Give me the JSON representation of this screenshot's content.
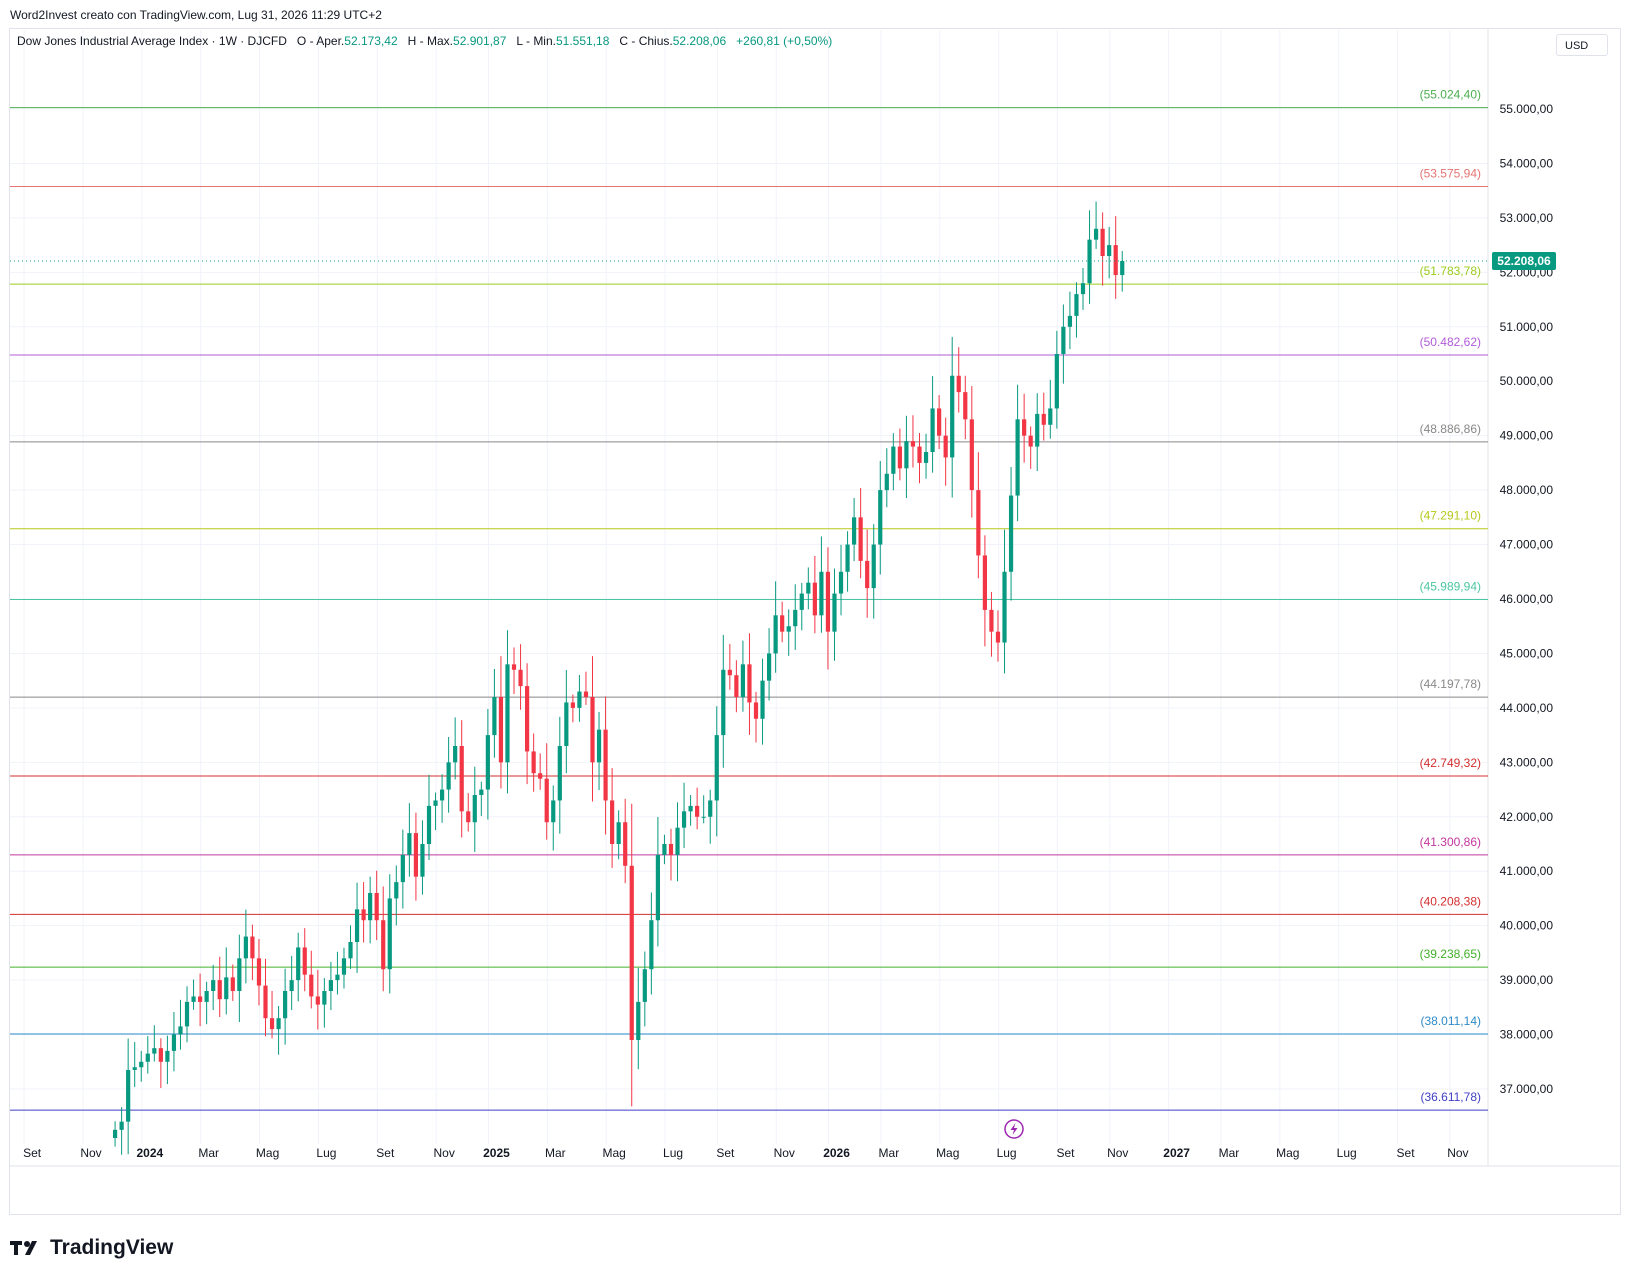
{
  "header": {
    "text": "Word2Invest creato con TradingView.com, Lug 31, 2026 11:29 UTC+2"
  },
  "legend": {
    "name": "Dow Jones Industrial Average Index · 1W · DJCFD",
    "open_label": "O - Aper.",
    "open": "52.173,42",
    "high_label": "H - Max.",
    "high": "52.901,87",
    "low_label": "L - Min.",
    "low": "51.551,18",
    "close_label": "C - Chius.",
    "close": "52.208,06",
    "change": "+260,81 (+0,50%)"
  },
  "currency": "USD",
  "brand": {
    "name": "TradingView"
  },
  "colors": {
    "up": "#089981",
    "down": "#f23645",
    "grid": "#f0f3fa",
    "last_price": "#089981"
  },
  "chart_data": {
    "type": "candlestick",
    "timeframe": "1W",
    "ylim": [
      36100,
      55900
    ],
    "y_ticks": [
      {
        "value": 37000,
        "label": "37.000,00"
      },
      {
        "value": 38000,
        "label": "38.000,00"
      },
      {
        "value": 39000,
        "label": "39.000,00"
      },
      {
        "value": 40000,
        "label": "40.000,00"
      },
      {
        "value": 41000,
        "label": "41.000,00"
      },
      {
        "value": 42000,
        "label": "42.000,00"
      },
      {
        "value": 43000,
        "label": "43.000,00"
      },
      {
        "value": 44000,
        "label": "44.000,00"
      },
      {
        "value": 45000,
        "label": "45.000,00"
      },
      {
        "value": 46000,
        "label": "46.000,00"
      },
      {
        "value": 47000,
        "label": "47.000,00"
      },
      {
        "value": 48000,
        "label": "48.000,00"
      },
      {
        "value": 49000,
        "label": "49.000,00"
      },
      {
        "value": 50000,
        "label": "50.000,00"
      },
      {
        "value": 51000,
        "label": "51.000,00"
      },
      {
        "value": 52000,
        "label": "52.000,00"
      },
      {
        "value": 53000,
        "label": "53.000,00"
      },
      {
        "value": 54000,
        "label": "54.000,00"
      },
      {
        "value": 55000,
        "label": "55.000,00"
      }
    ],
    "x_ticks": [
      {
        "week": -9,
        "label": "Set",
        "bold": false
      },
      {
        "week": 0,
        "label": "Nov",
        "bold": false
      },
      {
        "week": 9,
        "label": "2024",
        "bold": true
      },
      {
        "week": 18,
        "label": "Mar",
        "bold": false
      },
      {
        "week": 27,
        "label": "Mag",
        "bold": false
      },
      {
        "week": 36,
        "label": "Lug",
        "bold": false
      },
      {
        "week": 45,
        "label": "Set",
        "bold": false
      },
      {
        "week": 54,
        "label": "Nov",
        "bold": false
      },
      {
        "week": 62,
        "label": "2025",
        "bold": true
      },
      {
        "week": 71,
        "label": "Mar",
        "bold": false
      },
      {
        "week": 80,
        "label": "Mag",
        "bold": false
      },
      {
        "week": 89,
        "label": "Lug",
        "bold": false
      },
      {
        "week": 97,
        "label": "Set",
        "bold": false
      },
      {
        "week": 106,
        "label": "Nov",
        "bold": false
      },
      {
        "week": 114,
        "label": "2026",
        "bold": true
      },
      {
        "week": 122,
        "label": "Mar",
        "bold": false
      },
      {
        "week": 131,
        "label": "Mag",
        "bold": false
      },
      {
        "week": 140,
        "label": "Lug",
        "bold": false
      },
      {
        "week": 149,
        "label": "Set",
        "bold": false
      },
      {
        "week": 157,
        "label": "Nov",
        "bold": false
      },
      {
        "week": 166,
        "label": "2027",
        "bold": true
      },
      {
        "week": 174,
        "label": "Mar",
        "bold": false
      },
      {
        "week": 183,
        "label": "Mag",
        "bold": false
      },
      {
        "week": 192,
        "label": "Lug",
        "bold": false
      },
      {
        "week": 201,
        "label": "Set",
        "bold": false
      },
      {
        "week": 209,
        "label": "Nov",
        "bold": false
      }
    ],
    "levels": [
      {
        "value": 55024.4,
        "label": "(55.024,40)",
        "color": "#4caf50"
      },
      {
        "value": 53575.94,
        "label": "(53.575,94)",
        "color": "#e57373"
      },
      {
        "value": 51783.78,
        "label": "(51.783,78)",
        "color": "#9ccc1c"
      },
      {
        "value": 50482.62,
        "label": "(50.482,62)",
        "color": "#b15bd6"
      },
      {
        "value": 48886.86,
        "label": "(48.886,86)",
        "color": "#888888"
      },
      {
        "value": 47291.1,
        "label": "(47.291,10)",
        "color": "#b5c91a"
      },
      {
        "value": 45989.94,
        "label": "(45.989,94)",
        "color": "#4cc6a0"
      },
      {
        "value": 44197.78,
        "label": "(44.197,78)",
        "color": "#888888"
      },
      {
        "value": 42749.32,
        "label": "(42.749,32)",
        "color": "#d32f2f"
      },
      {
        "value": 41300.86,
        "label": "(41.300,86)",
        "color": "#c2369e"
      },
      {
        "value": 40208.38,
        "label": "(40.208,38)",
        "color": "#d32f2f"
      },
      {
        "value": 39238.65,
        "label": "(39.238,65)",
        "color": "#43b02a"
      },
      {
        "value": 38011.14,
        "label": "(38.011,14)",
        "color": "#2e8bc9"
      },
      {
        "value": 36611.78,
        "label": "(36.611,78)",
        "color": "#3f3fc4"
      }
    ],
    "last_price": {
      "value": 52208.06,
      "label": "52.208,06"
    },
    "closes": [
      36250,
      36400,
      37350,
      37400,
      37500,
      37650,
      37750,
      37500,
      37700,
      38000,
      38150,
      38600,
      38700,
      38600,
      38800,
      39000,
      38650,
      39050,
      38800,
      39400,
      39800,
      39400,
      38900,
      38300,
      38100,
      38300,
      38800,
      39000,
      39600,
      39100,
      38700,
      38550,
      38800,
      39000,
      39100,
      39400,
      39700,
      40300,
      40100,
      40600,
      40100,
      39200,
      40500,
      40800,
      41300,
      41700,
      40900,
      41500,
      42200,
      42300,
      42500,
      43000,
      43300,
      42100,
      41900,
      42400,
      42500,
      43500,
      44200,
      43000,
      44800,
      44700,
      44400,
      43200,
      42800,
      42700,
      41900,
      42300,
      43300,
      44100,
      44000,
      44300,
      44200,
      43000,
      43600,
      42300,
      41500,
      41900,
      41100,
      37900,
      38600,
      39200,
      40100,
      41300,
      41500,
      41300,
      41800,
      42100,
      42200,
      42000,
      42000,
      42300,
      43500,
      44700,
      44600,
      44200,
      44800,
      44100,
      43800,
      44500,
      45000,
      45700,
      45400,
      45500,
      45800,
      46100,
      46300,
      45700,
      46500,
      45400,
      46100,
      46500,
      47000,
      47500,
      46700,
      46200,
      47000,
      48000,
      48300,
      48800,
      48400,
      48900,
      48800,
      48500,
      48700,
      49500,
      49000,
      48600,
      50100,
      49800,
      49300,
      48000,
      46800,
      45800,
      45400,
      45200,
      46500,
      47900,
      49300,
      49000,
      48800,
      49400,
      49200,
      49500,
      50500,
      51000,
      51200,
      51600,
      51800,
      52600,
      52800,
      52300,
      52500,
      51950,
      52208.06
    ],
    "first_week": 2,
    "y_axis_currency": "USD"
  }
}
